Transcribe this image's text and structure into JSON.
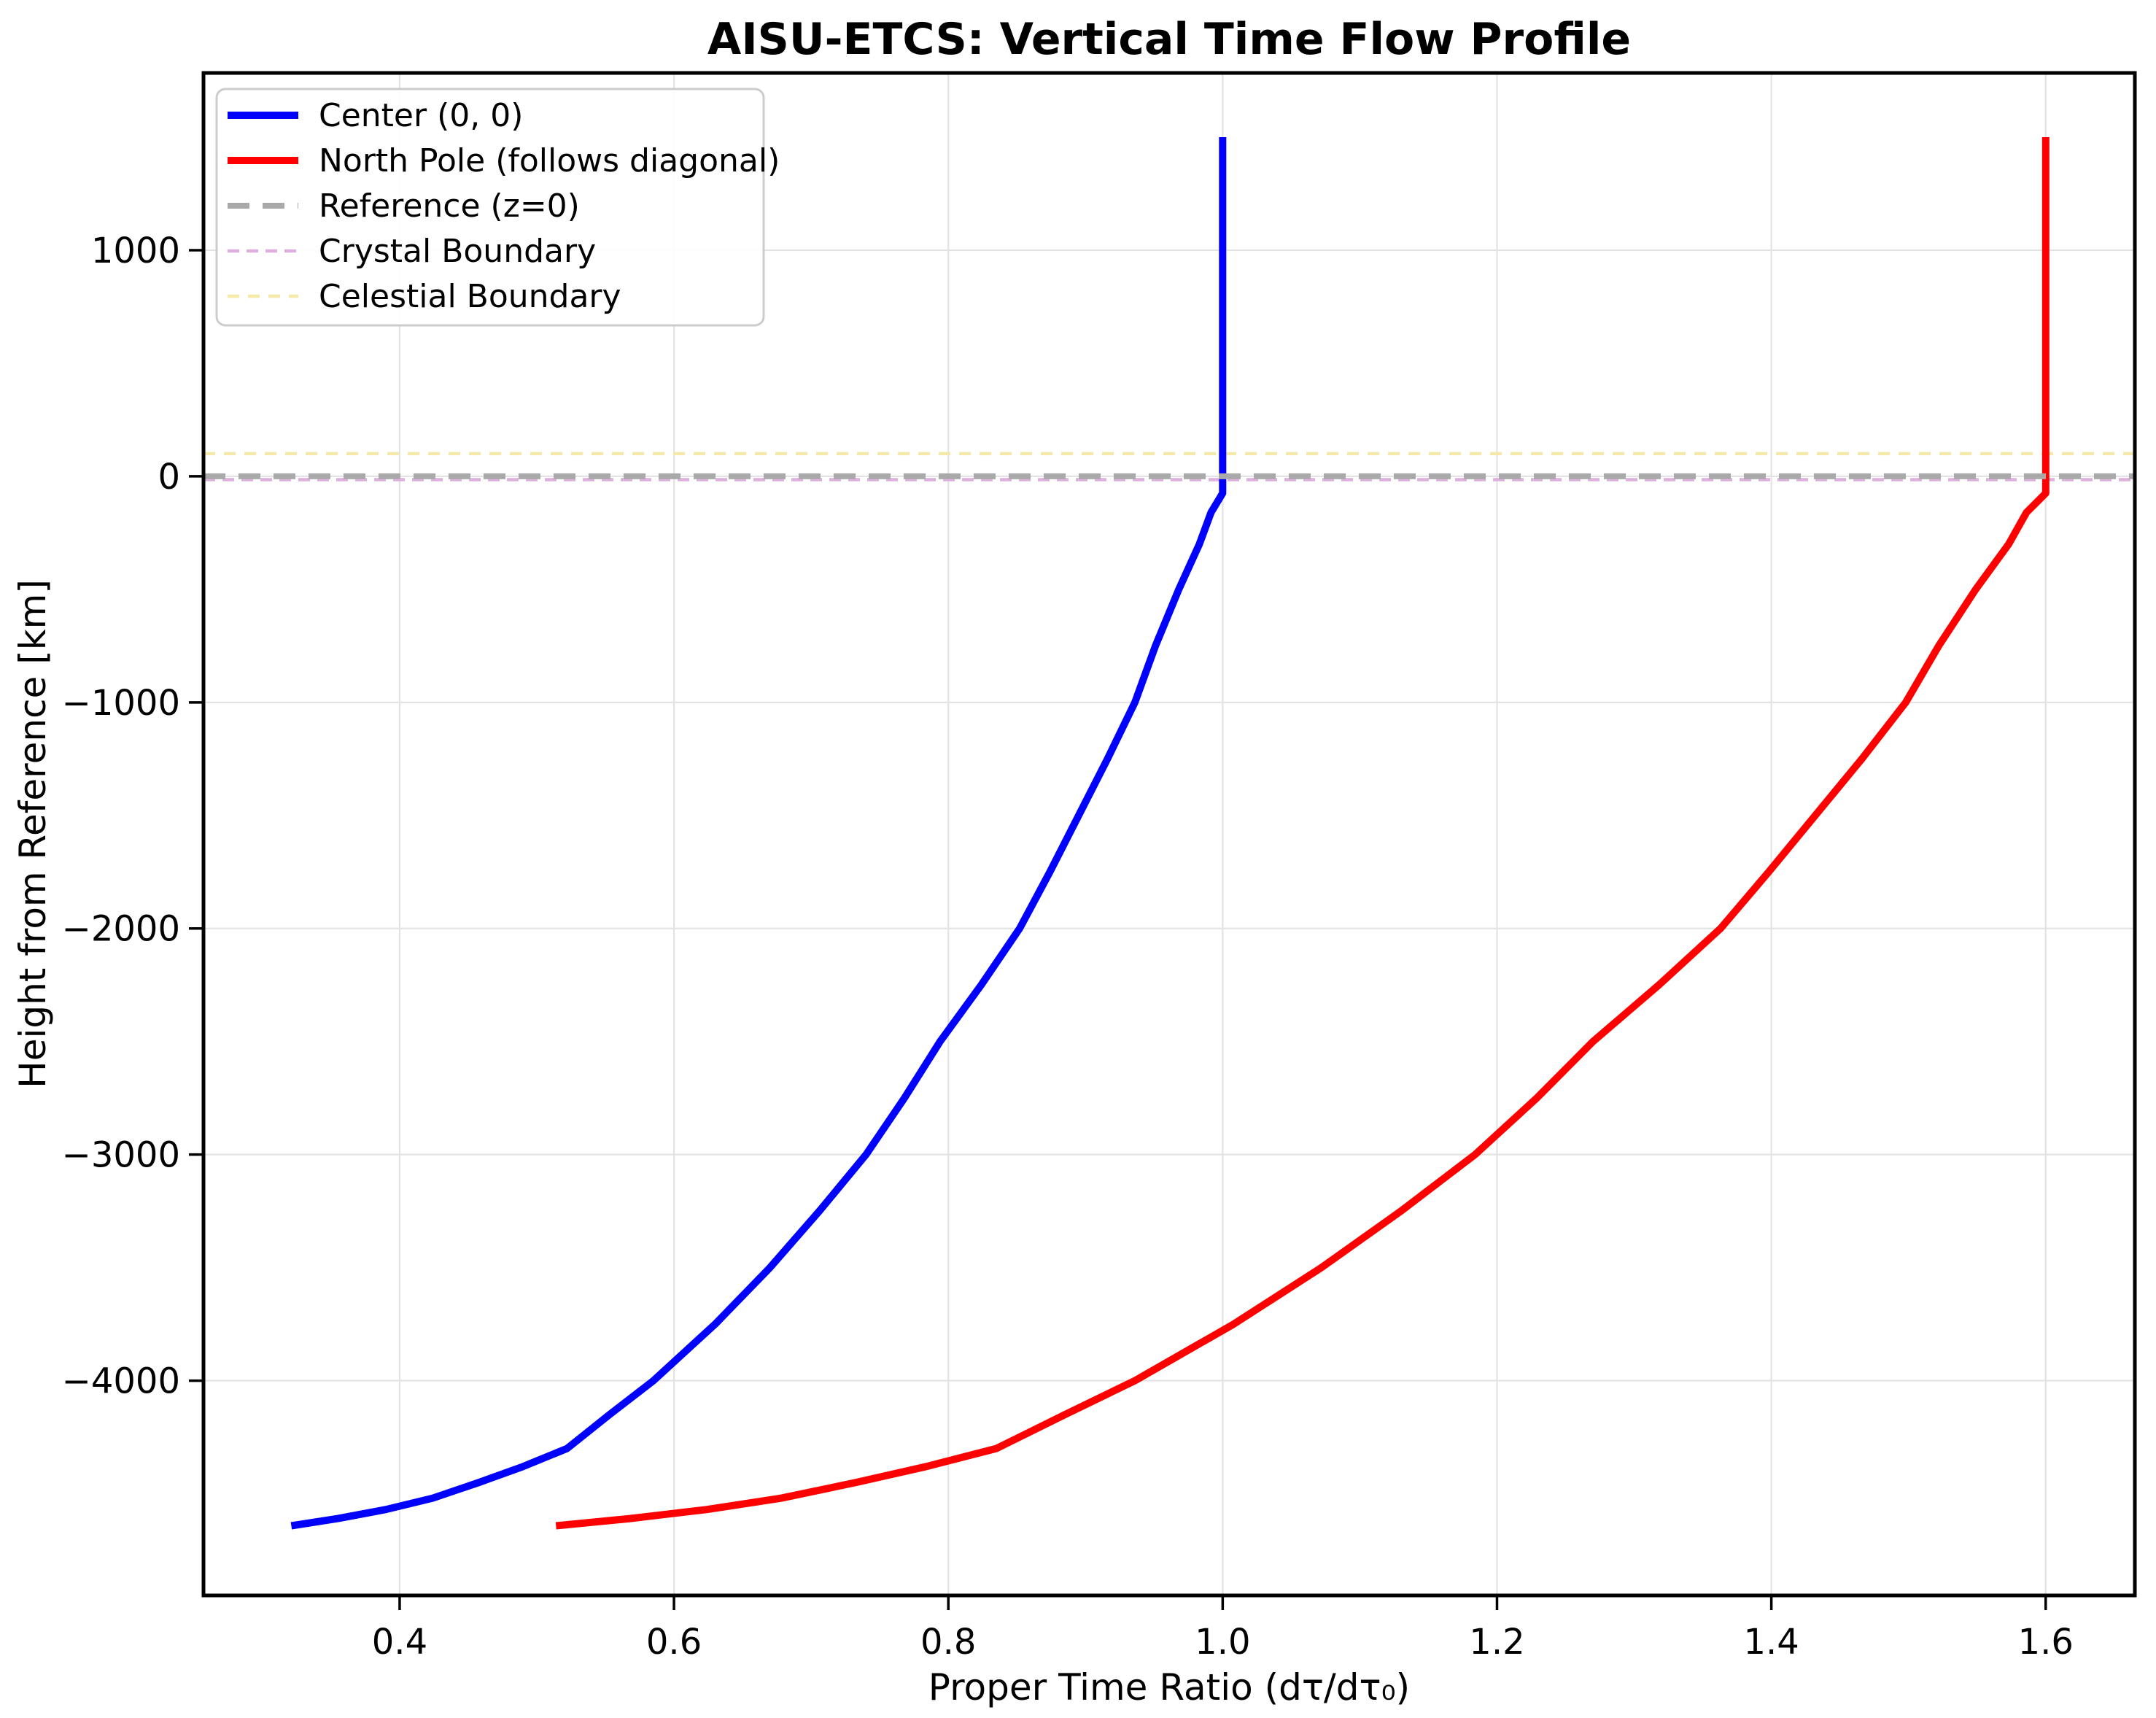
{
  "chart_data": {
    "type": "line",
    "title": "AISU-ETCS: Vertical Time Flow Profile",
    "xlabel": "Proper Time Ratio (dτ/dτ₀)",
    "ylabel": "Height from Reference [km]",
    "xlim": [
      0.257,
      1.665
    ],
    "ylim": [
      -4950,
      1784
    ],
    "x_ticks": [
      0.4,
      0.6,
      0.8,
      1.0,
      1.2,
      1.4,
      1.6
    ],
    "x_tick_labels": [
      "0.4",
      "0.6",
      "0.8",
      "1.0",
      "1.2",
      "1.4",
      "1.6"
    ],
    "y_ticks": [
      1000,
      0,
      -1000,
      -2000,
      -3000,
      -4000
    ],
    "y_tick_labels": [
      "1000",
      "0",
      "−1000",
      "−2000",
      "−3000",
      "−4000"
    ],
    "grid": true,
    "legend_position": "upper left",
    "series": [
      {
        "name": "Center (0, 0)",
        "color": "#0000ff",
        "line_width": 10,
        "dash": "solid",
        "points": [
          [
            1.0,
            1500
          ],
          [
            1.0,
            -75
          ],
          [
            0.9915,
            -160
          ],
          [
            0.983,
            -300
          ],
          [
            0.968,
            -500
          ],
          [
            0.951,
            -750
          ],
          [
            0.936,
            -1000
          ],
          [
            0.916,
            -1250
          ],
          [
            0.895,
            -1500
          ],
          [
            0.874,
            -1750
          ],
          [
            0.852,
            -2000
          ],
          [
            0.824,
            -2250
          ],
          [
            0.794,
            -2500
          ],
          [
            0.768,
            -2750
          ],
          [
            0.74,
            -3000
          ],
          [
            0.706,
            -3250
          ],
          [
            0.67,
            -3500
          ],
          [
            0.63,
            -3750
          ],
          [
            0.585,
            -4000
          ],
          [
            0.553,
            -4150
          ],
          [
            0.522,
            -4300
          ],
          [
            0.49,
            -4380
          ],
          [
            0.458,
            -4450
          ],
          [
            0.424,
            -4520
          ],
          [
            0.39,
            -4570
          ],
          [
            0.355,
            -4610
          ],
          [
            0.321,
            -4642
          ]
        ]
      },
      {
        "name": "North Pole (follows diagonal)",
        "color": "#ff0000",
        "line_width": 10,
        "dash": "solid",
        "points": [
          [
            1.6,
            1500
          ],
          [
            1.6,
            -75
          ],
          [
            1.586,
            -160
          ],
          [
            1.573,
            -300
          ],
          [
            1.549,
            -500
          ],
          [
            1.522,
            -750
          ],
          [
            1.498,
            -1000
          ],
          [
            1.466,
            -1250
          ],
          [
            1.432,
            -1500
          ],
          [
            1.398,
            -1750
          ],
          [
            1.363,
            -2000
          ],
          [
            1.318,
            -2250
          ],
          [
            1.27,
            -2500
          ],
          [
            1.229,
            -2750
          ],
          [
            1.184,
            -3000
          ],
          [
            1.13,
            -3250
          ],
          [
            1.072,
            -3500
          ],
          [
            1.008,
            -3750
          ],
          [
            0.936,
            -4000
          ],
          [
            0.885,
            -4150
          ],
          [
            0.835,
            -4300
          ],
          [
            0.784,
            -4380
          ],
          [
            0.733,
            -4450
          ],
          [
            0.678,
            -4520
          ],
          [
            0.624,
            -4570
          ],
          [
            0.568,
            -4610
          ],
          [
            0.514,
            -4642
          ]
        ]
      }
    ],
    "boundaries": [
      {
        "name": "Celestial Boundary",
        "z": 100,
        "color": "#f4e9a8",
        "dash": [
          16,
          12
        ],
        "line_width": 4.5,
        "layer": "below"
      },
      {
        "name": "Crystal Boundary",
        "z": -15,
        "color": "#ddb0dd",
        "dash": [
          16,
          10
        ],
        "line_width": 4.5,
        "layer": "below"
      },
      {
        "name": "Reference (z=0)",
        "z": 0,
        "color": "#a9a9a9",
        "dash": [
          30,
          18
        ],
        "line_width": 8,
        "layer": "above"
      }
    ],
    "legend_order": [
      "Center (0, 0)",
      "North Pole (follows diagonal)",
      "Reference (z=0)",
      "Crystal Boundary",
      "Celestial Boundary"
    ],
    "colors": {
      "grid": "#e3e3e3",
      "spine": "#000000",
      "background": "#ffffff",
      "legend_border": "#cccccc"
    }
  }
}
